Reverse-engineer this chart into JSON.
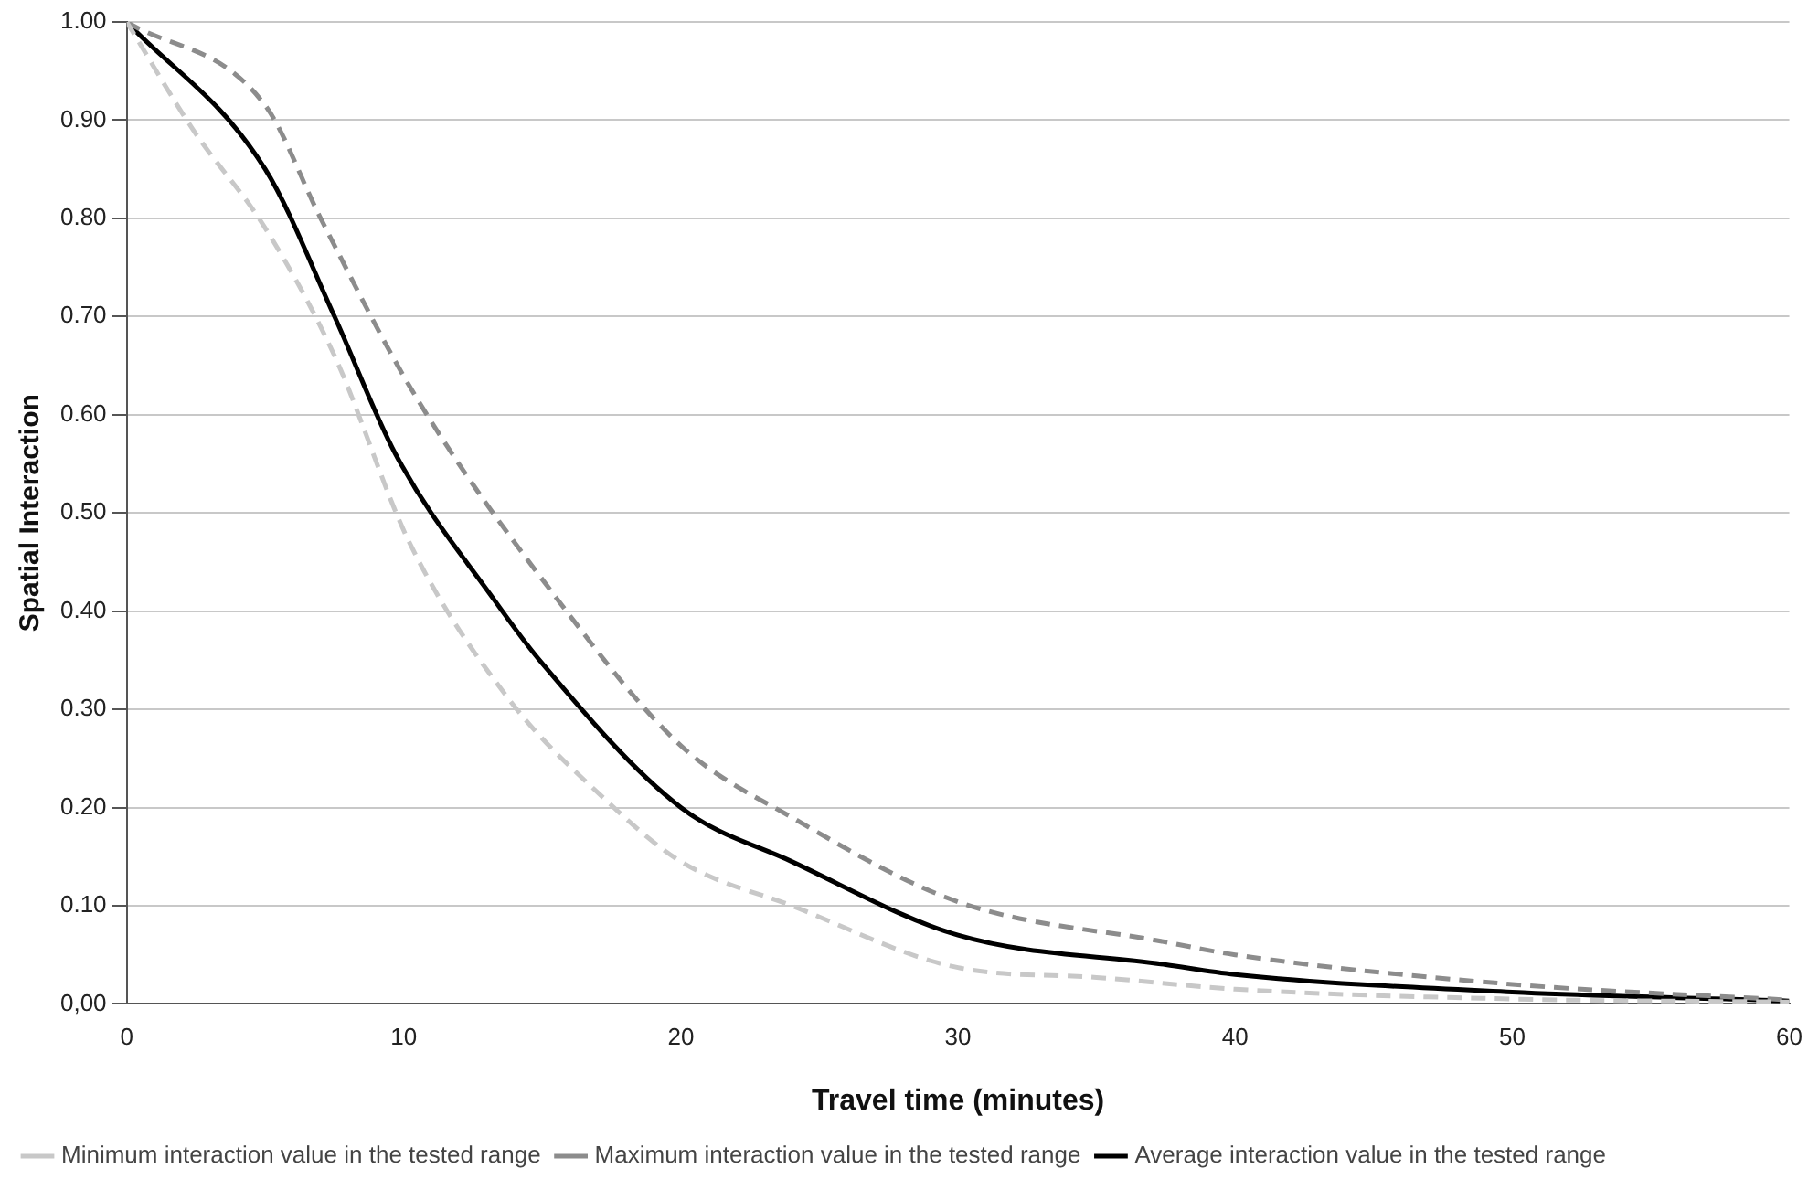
{
  "chart_data": {
    "type": "line",
    "xlabel": "Travel time (minutes)",
    "ylabel": "Spatial Interaction",
    "xlim": [
      0,
      60
    ],
    "xticks": [
      0,
      10,
      20,
      30,
      40,
      50,
      60
    ],
    "ylim": [
      0,
      1
    ],
    "yticks": [
      {
        "value": 0,
        "label": "0,00"
      },
      {
        "value": 0.1,
        "label": "0.10"
      },
      {
        "value": 0.2,
        "label": "0.20"
      },
      {
        "value": 0.3,
        "label": "0.30"
      },
      {
        "value": 0.4,
        "label": "0.40"
      },
      {
        "value": 0.5,
        "label": "0.50"
      },
      {
        "value": 0.6,
        "label": "0.60"
      },
      {
        "value": 0.7,
        "label": "0.70"
      },
      {
        "value": 0.8,
        "label": "0.80"
      },
      {
        "value": 0.9,
        "label": "0.90"
      },
      {
        "value": 1,
        "label": "1.00"
      }
    ],
    "grid": "y",
    "legend": "bottom",
    "marker": "none",
    "series": [
      {
        "name": "Minimum interaction value in the tested range",
        "color": "#c8c8c8",
        "line_style": "dashed",
        "x": [
          0,
          2.4,
          5,
          7.5,
          10.2,
          13.8,
          17.2,
          20,
          24,
          30,
          35,
          40,
          50,
          60
        ],
        "values": [
          1,
          0.89,
          0.79,
          0.66,
          0.47,
          0.31,
          0.21,
          0.145,
          0.1,
          0.037,
          0.027,
          0.015,
          0.005,
          0.002
        ]
      },
      {
        "name": "Maximum interaction value in the tested range",
        "color": "#8c8c8c",
        "line_style": "dashed",
        "x": [
          0,
          5,
          7,
          10.4,
          15.6,
          20,
          24,
          30,
          37.5,
          40,
          50,
          60
        ],
        "values": [
          1,
          0.915,
          0.8,
          0.62,
          0.41,
          0.263,
          0.19,
          0.104,
          0.063,
          0.05,
          0.02,
          0.004
        ]
      },
      {
        "name": "Average interaction value in the tested range",
        "color": "#000000",
        "line_style": "solid",
        "x": [
          0,
          5,
          7.5,
          9.7,
          13.3,
          14.9,
          20,
          24,
          30,
          37.5,
          40,
          50,
          60
        ],
        "values": [
          1,
          0.85,
          0.7,
          0.56,
          0.41,
          0.35,
          0.2,
          0.145,
          0.07,
          0.04,
          0.03,
          0.012,
          0.003
        ]
      }
    ]
  }
}
